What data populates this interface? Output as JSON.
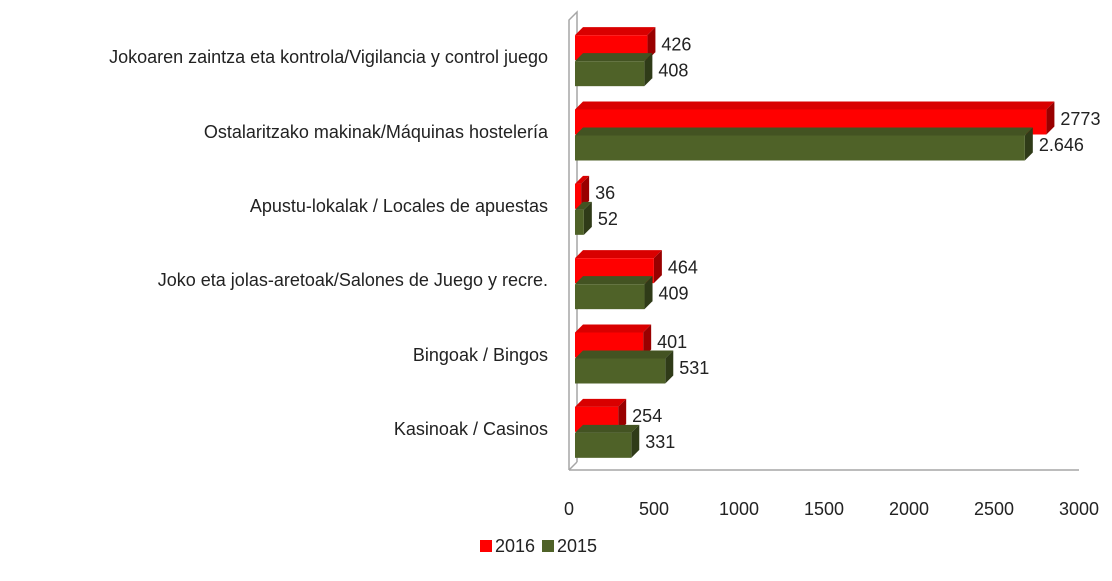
{
  "chart_data": {
    "type": "bar",
    "orientation": "horizontal",
    "three_d": true,
    "categories": [
      "Jokoaren zaintza eta kontrola/Vigilancia y control juego",
      "Ostalaritzako makinak/Máquinas hostelería",
      "Apustu-lokalak / Locales de apuestas",
      "Joko eta jolas-aretoak/Salones de Juego y recre.",
      "Bingoak / Bingos",
      "Kasinoak / Casinos"
    ],
    "series": [
      {
        "name": "2016",
        "color": "#ff0000",
        "values": [
          426,
          2773,
          36,
          464,
          401,
          254
        ]
      },
      {
        "name": "2015",
        "color": "#4f6228",
        "values": [
          408,
          2646,
          52,
          409,
          531,
          331
        ],
        "value_labels": [
          "408",
          "2.646",
          "52",
          "409",
          "531",
          "331"
        ]
      }
    ],
    "xlim": [
      0,
      3000
    ],
    "xticks": [
      0,
      500,
      1000,
      1500,
      2000,
      2500,
      3000
    ],
    "grid": false,
    "legend": "bottom"
  }
}
